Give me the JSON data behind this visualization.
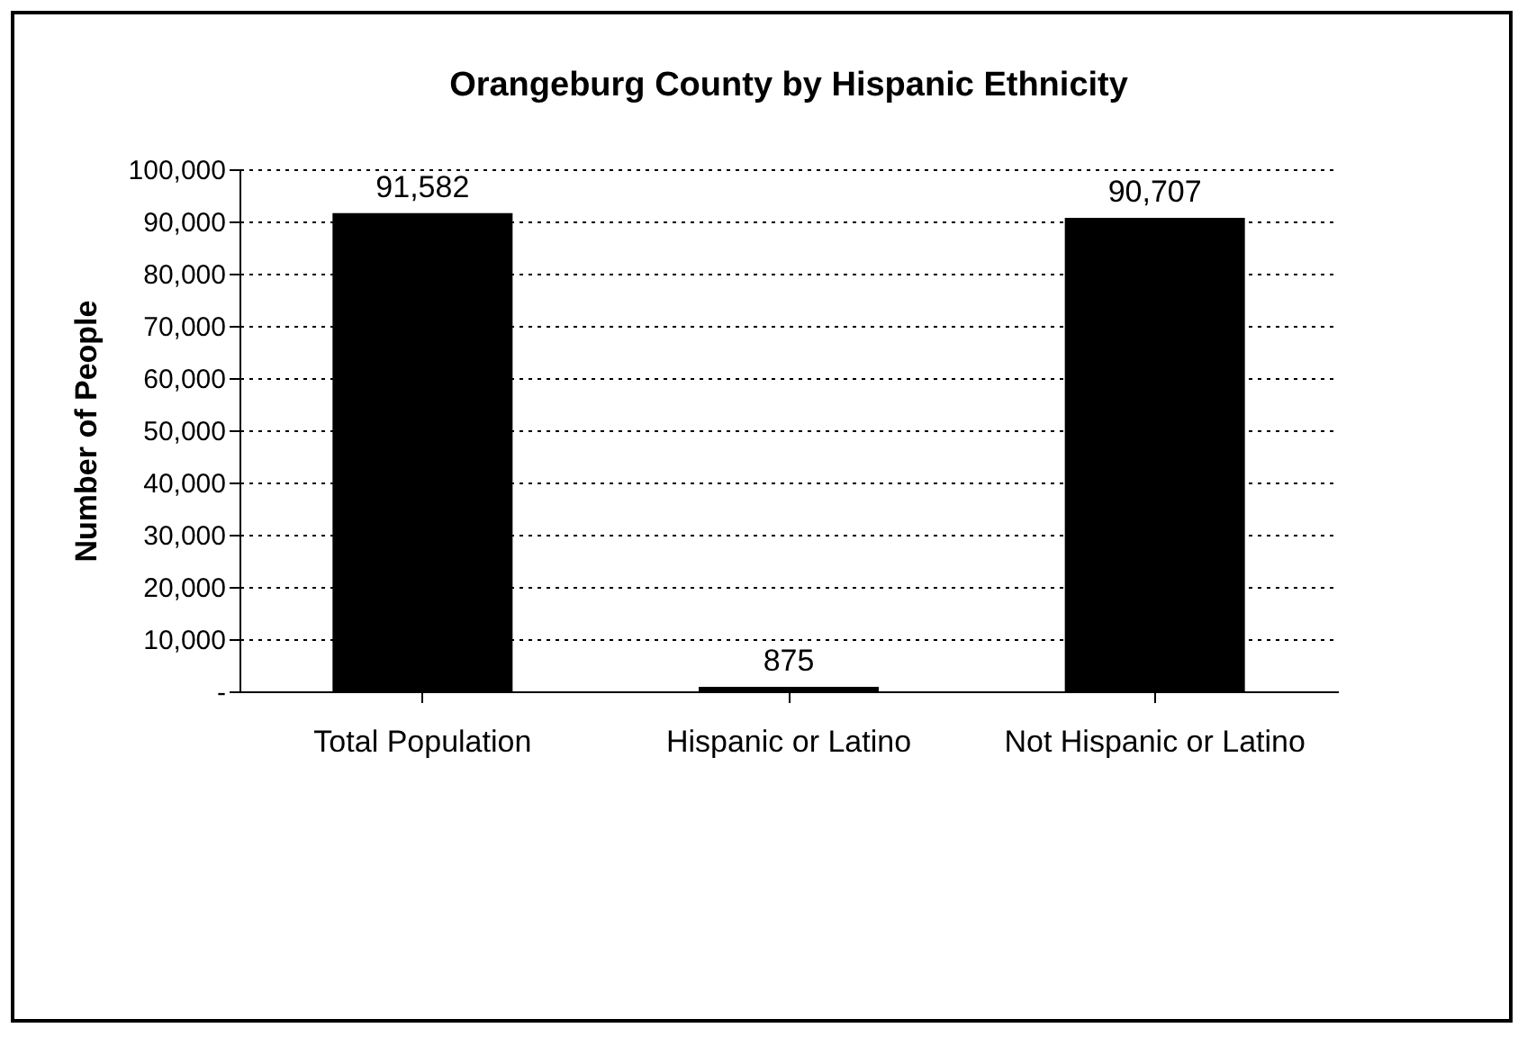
{
  "chart_data": {
    "type": "bar",
    "title": "Orangeburg County by Hispanic Ethnicity",
    "ylabel": "Number of People",
    "categories": [
      "Total Population",
      "Hispanic or Latino",
      "Not Hispanic or Latino"
    ],
    "values": [
      91582,
      875,
      90707
    ],
    "value_labels": [
      "91,582",
      "875",
      "90,707"
    ],
    "color": "#000000",
    "ylim": [
      0,
      100000
    ],
    "yticks": [
      {
        "value": 0,
        "label": "-"
      },
      {
        "value": 10000,
        "label": "10,000"
      },
      {
        "value": 20000,
        "label": "20,000"
      },
      {
        "value": 30000,
        "label": "30,000"
      },
      {
        "value": 40000,
        "label": "40,000"
      },
      {
        "value": 50000,
        "label": "50,000"
      },
      {
        "value": 60000,
        "label": "60,000"
      },
      {
        "value": 70000,
        "label": "70,000"
      },
      {
        "value": 80000,
        "label": "80,000"
      },
      {
        "value": 90000,
        "label": "90,000"
      },
      {
        "value": 100000,
        "label": "100,000"
      }
    ],
    "grid": "y"
  }
}
